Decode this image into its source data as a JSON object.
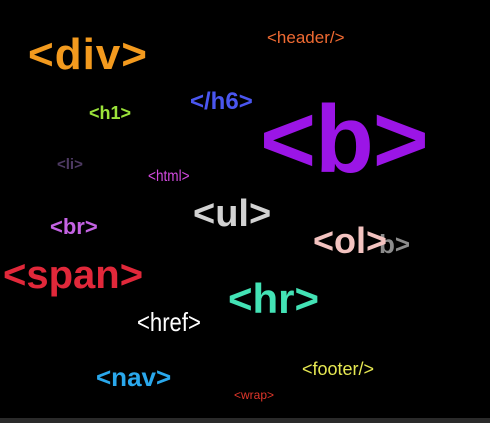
{
  "tags": {
    "div": {
      "text": "<div>",
      "color": "#f39a1e"
    },
    "header": {
      "text": "<header/>",
      "color": "#ef6a32"
    },
    "h1": {
      "text": "<h1>",
      "color": "#9be33a"
    },
    "h6": {
      "text": "</h6>",
      "color": "#4a56f0"
    },
    "b": {
      "text": "<b>",
      "color": "#9b15e6"
    },
    "li": {
      "text": "<li>",
      "color": "#4e3a63"
    },
    "html": {
      "text": "<html>",
      "color": "#d34ae0"
    },
    "ul": {
      "text": "<ul>",
      "color": "#d2d2d2"
    },
    "br": {
      "text": "<br>",
      "color": "#c463e3"
    },
    "ol": {
      "text": "<ol>",
      "color": "#f3c3c0"
    },
    "ol_echo": {
      "text": "b>",
      "color": "#8b8b8b"
    },
    "span": {
      "text": "<span>",
      "color": "#e1283a"
    },
    "hr": {
      "text": "<hr>",
      "color": "#43e2b5"
    },
    "href": {
      "text": "<href>",
      "color": "#ffffff"
    },
    "nav": {
      "text": "<nav>",
      "color": "#2aa8ec"
    },
    "footer": {
      "text": "<footer/>",
      "color": "#e6e852"
    },
    "wrap": {
      "text": "<wrap>",
      "color": "#e0362a"
    }
  },
  "background_color": "#000000"
}
